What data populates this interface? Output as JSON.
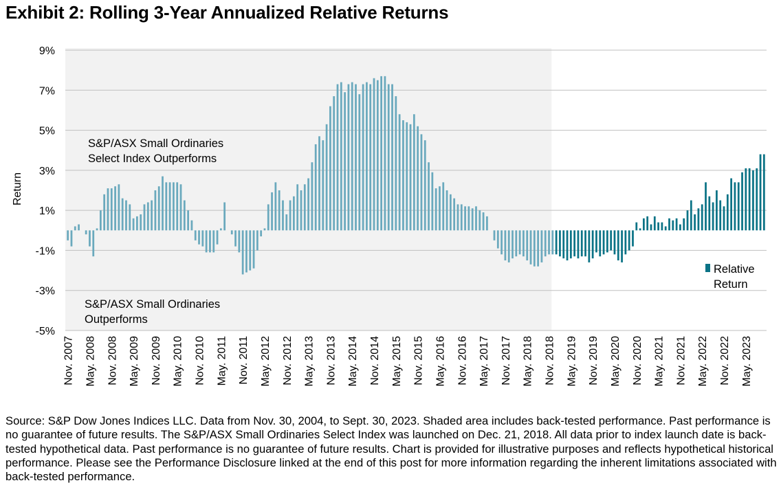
{
  "title": "Exhibit 2: Rolling 3-Year Annualized Relative Returns",
  "source_note": "Source: S&P Dow Jones Indices LLC. Data from Nov. 30, 2004, to Sept. 30, 2023. Shaded area includes back-tested performance. Past performance is no guarantee of future results. The S&P/ASX Small Ordinaries Select Index was launched on Dec. 21, 2018. All data prior to index launch date is back-tested hypothetical data. Past performance is no guarantee of future results. Chart is provided for illustrative purposes and reflects hypothetical historical performance. Please see the Performance Disclosure linked at the end of this post for more information regarding the inherent limitations associated with back-tested performance.",
  "colors": {
    "backtested": "#6aa9bd",
    "live": "#0b7386",
    "shade": "#f2f2f2",
    "grid": "#bfbfbf"
  },
  "chart_data": {
    "type": "bar",
    "ylabel": "Return",
    "ylim": [
      -5,
      9
    ],
    "yticks": [
      "9%",
      "7%",
      "5%",
      "3%",
      "1%",
      "-1%",
      "-3%",
      "-5%"
    ],
    "grid": true,
    "legend": {
      "position": "right",
      "entries": [
        "Relative",
        "Return"
      ]
    },
    "annotations": [
      "S&P/ASX Small Ordinaries",
      "Select Index Outperforms",
      "S&P/ASX Small Ordinaries",
      "Outperforms"
    ],
    "shaded_until": "Dec. 2018",
    "x_tick_labels": [
      "Nov. 2007",
      "May. 2008",
      "Nov. 2008",
      "May. 2009",
      "Nov. 2009",
      "May. 2010",
      "Nov. 2010",
      "May. 2011",
      "Nov. 2011",
      "May. 2012",
      "Nov. 2012",
      "May. 2013",
      "Nov. 2013",
      "May. 2014",
      "Nov. 2014",
      "May. 2015",
      "Nov. 2015",
      "May. 2016",
      "Nov. 2016",
      "May. 2017",
      "Nov. 2017",
      "May. 2018",
      "Nov. 2018",
      "May. 2019",
      "Nov. 2019",
      "May. 2020",
      "Nov. 2020",
      "May. 2021",
      "Nov. 2021",
      "May. 2022",
      "Nov. 2022",
      "May. 2023"
    ],
    "start_month": "Nov. 2007",
    "values": [
      -0.5,
      -0.8,
      0.2,
      0.3,
      0,
      -0.2,
      -0.8,
      -1.3,
      0.1,
      1.0,
      1.8,
      2.1,
      2.1,
      2.2,
      2.3,
      1.6,
      1.5,
      1.3,
      0.6,
      0.7,
      0.8,
      1.3,
      1.4,
      1.5,
      2.0,
      2.2,
      2.7,
      2.4,
      2.4,
      2.4,
      2.4,
      2.3,
      1.5,
      1.0,
      0.5,
      -0.5,
      -0.7,
      -0.8,
      -1.1,
      -1.1,
      -1.1,
      -0.7,
      0.1,
      1.4,
      0,
      -0.2,
      -0.8,
      -1.1,
      -2.2,
      -2.1,
      -2.0,
      -1.9,
      -1.0,
      -0.3,
      0.1,
      1.3,
      1.9,
      2.4,
      2.0,
      1.5,
      0.8,
      1.5,
      1.7,
      2.3,
      2.0,
      2.3,
      2.6,
      3.4,
      4.3,
      4.7,
      4.5,
      5.3,
      6.2,
      6.7,
      7.3,
      7.4,
      6.9,
      7.3,
      7.4,
      7.3,
      6.8,
      7.3,
      7.4,
      7.3,
      7.6,
      7.5,
      7.7,
      7.7,
      7.3,
      7.3,
      6.7,
      5.8,
      5.5,
      5.4,
      5.3,
      5.8,
      5.2,
      4.8,
      4.5,
      3.4,
      2.9,
      2.1,
      2.2,
      2.4,
      2.0,
      1.8,
      1.6,
      1.3,
      1.3,
      1.2,
      1.2,
      1.1,
      1.2,
      1.0,
      0.9,
      0.7,
      0,
      -0.5,
      -0.9,
      -1.2,
      -1.5,
      -1.6,
      -1.4,
      -1.3,
      -1.2,
      -1.3,
      -1.5,
      -1.7,
      -1.8,
      -1.8,
      -1.6,
      -1.3,
      -1.2,
      -1.2,
      -1.2,
      -1.3,
      -1.4,
      -1.5,
      -1.4,
      -1.3,
      -1.4,
      -1.3,
      -1.3,
      -1.6,
      -1.4,
      -1.1,
      -1.3,
      -1.2,
      -1.1,
      -1.0,
      -1.2,
      -1.5,
      -1.6,
      -1.2,
      -1.0,
      -0.8,
      0.4,
      0.1,
      0.6,
      0.7,
      0.3,
      0.7,
      0.4,
      0.4,
      0.2,
      0.6,
      0.5,
      0.6,
      0.3,
      0.6,
      1.0,
      1.5,
      0.8,
      1.1,
      1.3,
      2.4,
      1.7,
      1.4,
      2.0,
      1.5,
      1.2,
      1.8,
      2.6,
      2.4,
      2.4,
      2.9,
      3.1,
      3.1,
      3.0,
      3.1,
      3.8,
      3.8
    ]
  }
}
